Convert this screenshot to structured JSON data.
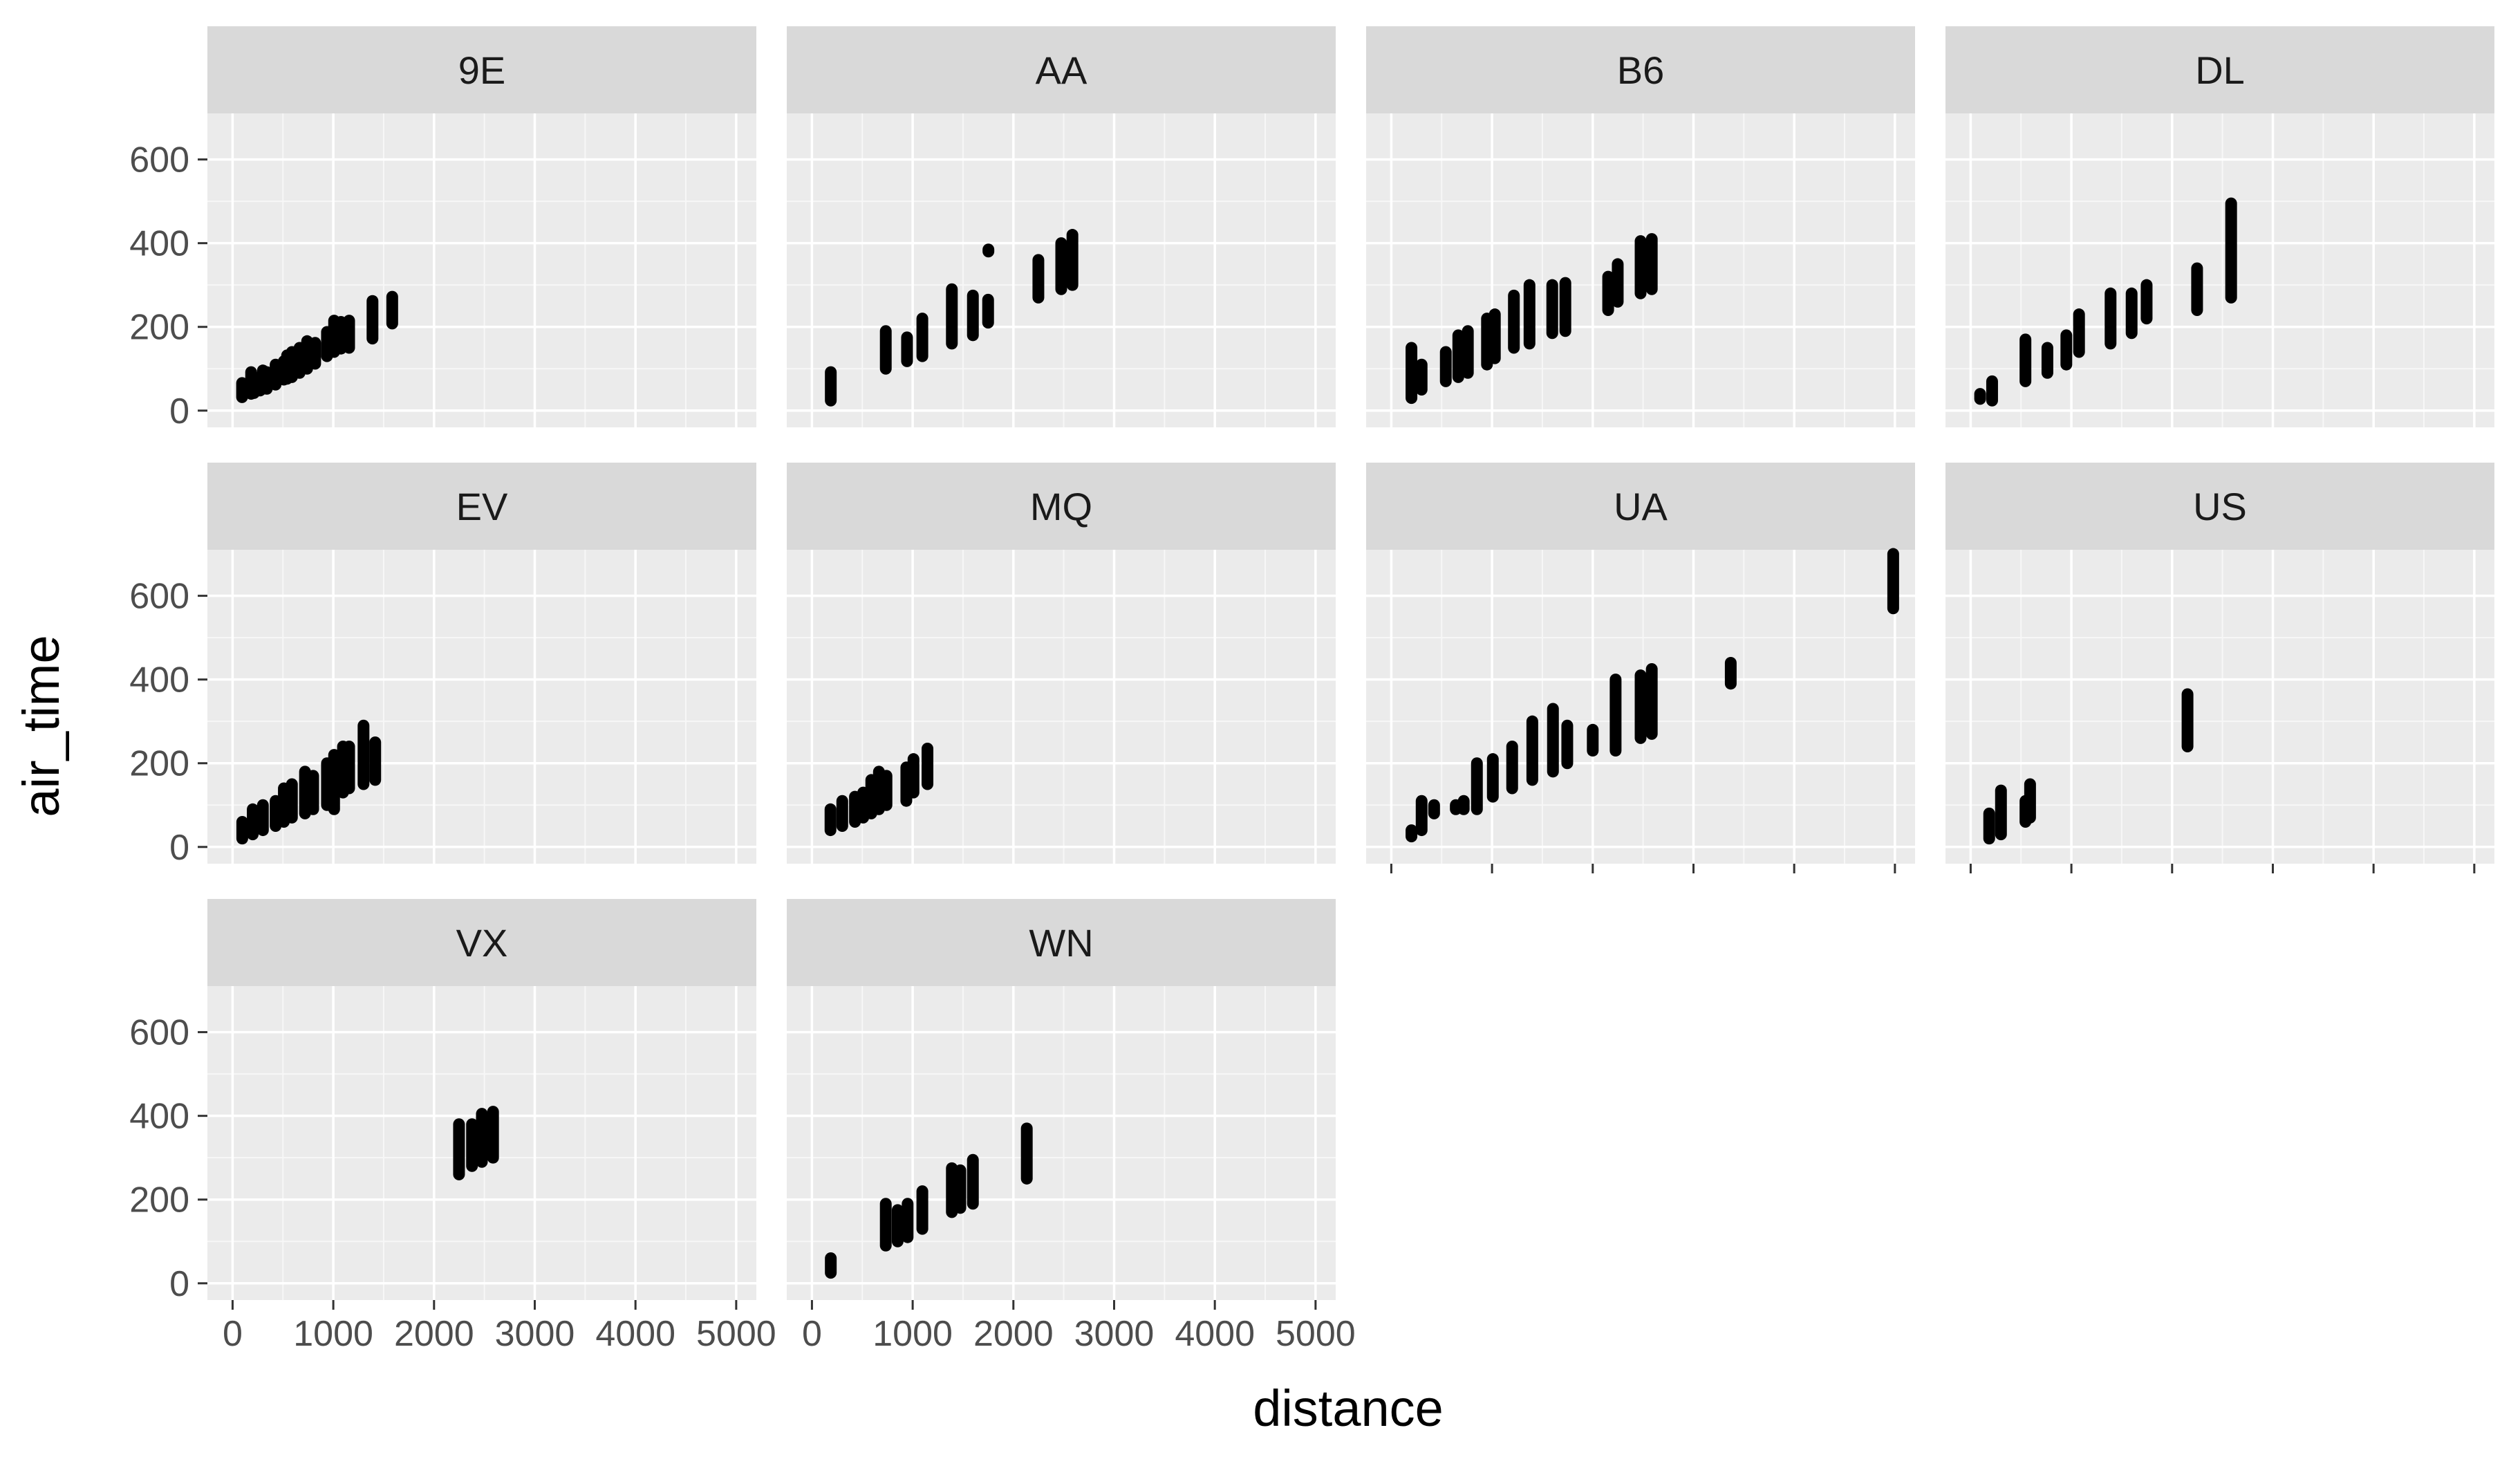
{
  "chart_data": {
    "type": "scatter",
    "facet_by": "carrier",
    "xlabel": "distance",
    "ylabel": "air_time",
    "xlim": [
      -250,
      5200
    ],
    "ylim": [
      -40,
      710
    ],
    "x_ticks": [
      0,
      1000,
      2000,
      3000,
      4000,
      5000
    ],
    "x_tick_labels": [
      "0",
      "1000",
      "2000",
      "3000",
      "4000",
      "5000"
    ],
    "y_ticks": [
      0,
      200,
      400,
      600
    ],
    "y_tick_labels": [
      "0",
      "200",
      "400",
      "600"
    ],
    "grid": true,
    "point_color": "#000000",
    "panel_background": "#ebebeb",
    "strip_background": "#d9d9d9",
    "facets": [
      {
        "label": "9E",
        "points": [
          {
            "x": 94,
            "y": 32,
            "y2": 66
          },
          {
            "x": 184,
            "y": 40,
            "y2": 92
          },
          {
            "x": 213,
            "y": 42,
            "y2": 72
          },
          {
            "x": 273,
            "y": 48,
            "y2": 80
          },
          {
            "x": 301,
            "y": 52,
            "y2": 96
          },
          {
            "x": 340,
            "y": 52,
            "y2": 92
          },
          {
            "x": 427,
            "y": 62,
            "y2": 110
          },
          {
            "x": 509,
            "y": 74,
            "y2": 118
          },
          {
            "x": 541,
            "y": 76,
            "y2": 132
          },
          {
            "x": 589,
            "y": 80,
            "y2": 140
          },
          {
            "x": 665,
            "y": 90,
            "y2": 150
          },
          {
            "x": 740,
            "y": 100,
            "y2": 166
          },
          {
            "x": 820,
            "y": 112,
            "y2": 162
          },
          {
            "x": 937,
            "y": 130,
            "y2": 188
          },
          {
            "x": 1008,
            "y": 140,
            "y2": 215
          },
          {
            "x": 1076,
            "y": 148,
            "y2": 212
          },
          {
            "x": 1157,
            "y": 150,
            "y2": 215
          },
          {
            "x": 1389,
            "y": 172,
            "y2": 262
          },
          {
            "x": 1585,
            "y": 208,
            "y2": 272
          }
        ]
      },
      {
        "label": "AA",
        "points": [
          {
            "x": 187,
            "y": 24,
            "y2": 92
          },
          {
            "x": 733,
            "y": 100,
            "y2": 190
          },
          {
            "x": 944,
            "y": 118,
            "y2": 175
          },
          {
            "x": 1096,
            "y": 130,
            "y2": 220
          },
          {
            "x": 1389,
            "y": 160,
            "y2": 290
          },
          {
            "x": 1598,
            "y": 180,
            "y2": 275
          },
          {
            "x": 1749,
            "y": 210,
            "y2": 265
          },
          {
            "x": 1752,
            "y": 380,
            "y2": 385
          },
          {
            "x": 2248,
            "y": 270,
            "y2": 360
          },
          {
            "x": 2475,
            "y": 290,
            "y2": 400
          },
          {
            "x": 2586,
            "y": 300,
            "y2": 420
          }
        ]
      },
      {
        "label": "B6",
        "points": [
          {
            "x": 200,
            "y": 30,
            "y2": 150
          },
          {
            "x": 301,
            "y": 50,
            "y2": 110
          },
          {
            "x": 541,
            "y": 70,
            "y2": 140
          },
          {
            "x": 665,
            "y": 80,
            "y2": 180
          },
          {
            "x": 760,
            "y": 90,
            "y2": 190
          },
          {
            "x": 950,
            "y": 110,
            "y2": 220
          },
          {
            "x": 1028,
            "y": 125,
            "y2": 230
          },
          {
            "x": 1217,
            "y": 150,
            "y2": 275
          },
          {
            "x": 1372,
            "y": 160,
            "y2": 300
          },
          {
            "x": 1598,
            "y": 185,
            "y2": 300
          },
          {
            "x": 1728,
            "y": 190,
            "y2": 305
          },
          {
            "x": 2153,
            "y": 240,
            "y2": 320
          },
          {
            "x": 2248,
            "y": 260,
            "y2": 350
          },
          {
            "x": 2475,
            "y": 280,
            "y2": 405
          },
          {
            "x": 2586,
            "y": 290,
            "y2": 410
          }
        ]
      },
      {
        "label": "DL",
        "points": [
          {
            "x": 94,
            "y": 28,
            "y2": 40
          },
          {
            "x": 213,
            "y": 24,
            "y2": 70
          },
          {
            "x": 544,
            "y": 70,
            "y2": 170
          },
          {
            "x": 762,
            "y": 90,
            "y2": 150
          },
          {
            "x": 950,
            "y": 110,
            "y2": 180
          },
          {
            "x": 1076,
            "y": 140,
            "y2": 230
          },
          {
            "x": 1389,
            "y": 160,
            "y2": 280
          },
          {
            "x": 1598,
            "y": 185,
            "y2": 280
          },
          {
            "x": 1747,
            "y": 220,
            "y2": 300
          },
          {
            "x": 2248,
            "y": 240,
            "y2": 340
          },
          {
            "x": 2586,
            "y": 270,
            "y2": 495
          }
        ]
      },
      {
        "label": "EV",
        "points": [
          {
            "x": 96,
            "y": 20,
            "y2": 60
          },
          {
            "x": 200,
            "y": 30,
            "y2": 90
          },
          {
            "x": 301,
            "y": 40,
            "y2": 100
          },
          {
            "x": 427,
            "y": 50,
            "y2": 110
          },
          {
            "x": 509,
            "y": 60,
            "y2": 140
          },
          {
            "x": 589,
            "y": 70,
            "y2": 150
          },
          {
            "x": 719,
            "y": 80,
            "y2": 180
          },
          {
            "x": 800,
            "y": 90,
            "y2": 170
          },
          {
            "x": 937,
            "y": 100,
            "y2": 200
          },
          {
            "x": 1008,
            "y": 90,
            "y2": 220
          },
          {
            "x": 1096,
            "y": 130,
            "y2": 240
          },
          {
            "x": 1157,
            "y": 140,
            "y2": 240
          },
          {
            "x": 1300,
            "y": 150,
            "y2": 290
          },
          {
            "x": 1416,
            "y": 160,
            "y2": 250
          }
        ]
      },
      {
        "label": "MQ",
        "points": [
          {
            "x": 184,
            "y": 40,
            "y2": 90
          },
          {
            "x": 301,
            "y": 50,
            "y2": 110
          },
          {
            "x": 427,
            "y": 60,
            "y2": 120
          },
          {
            "x": 509,
            "y": 70,
            "y2": 130
          },
          {
            "x": 589,
            "y": 80,
            "y2": 160
          },
          {
            "x": 665,
            "y": 90,
            "y2": 180
          },
          {
            "x": 740,
            "y": 100,
            "y2": 170
          },
          {
            "x": 937,
            "y": 110,
            "y2": 190
          },
          {
            "x": 1008,
            "y": 130,
            "y2": 210
          },
          {
            "x": 1147,
            "y": 150,
            "y2": 235
          }
        ]
      },
      {
        "label": "UA",
        "points": [
          {
            "x": 200,
            "y": 25,
            "y2": 40
          },
          {
            "x": 301,
            "y": 40,
            "y2": 110
          },
          {
            "x": 425,
            "y": 80,
            "y2": 100
          },
          {
            "x": 640,
            "y": 90,
            "y2": 100
          },
          {
            "x": 719,
            "y": 90,
            "y2": 110
          },
          {
            "x": 850,
            "y": 90,
            "y2": 200
          },
          {
            "x": 1008,
            "y": 120,
            "y2": 210
          },
          {
            "x": 1200,
            "y": 140,
            "y2": 240
          },
          {
            "x": 1400,
            "y": 160,
            "y2": 300
          },
          {
            "x": 1605,
            "y": 180,
            "y2": 330
          },
          {
            "x": 1747,
            "y": 200,
            "y2": 290
          },
          {
            "x": 2000,
            "y": 230,
            "y2": 280
          },
          {
            "x": 2227,
            "y": 230,
            "y2": 400
          },
          {
            "x": 2475,
            "y": 260,
            "y2": 410
          },
          {
            "x": 2586,
            "y": 270,
            "y2": 425
          },
          {
            "x": 3370,
            "y": 390,
            "y2": 440
          },
          {
            "x": 4983,
            "y": 570,
            "y2": 700
          }
        ]
      },
      {
        "label": "US",
        "points": [
          {
            "x": 184,
            "y": 20,
            "y2": 80
          },
          {
            "x": 301,
            "y": 30,
            "y2": 135
          },
          {
            "x": 544,
            "y": 60,
            "y2": 110
          },
          {
            "x": 590,
            "y": 70,
            "y2": 150
          },
          {
            "x": 2153,
            "y": 240,
            "y2": 365
          }
        ]
      },
      {
        "label": "VX",
        "points": [
          {
            "x": 2248,
            "y": 260,
            "y2": 380
          },
          {
            "x": 2377,
            "y": 280,
            "y2": 380
          },
          {
            "x": 2475,
            "y": 290,
            "y2": 405
          },
          {
            "x": 2586,
            "y": 300,
            "y2": 410
          }
        ]
      },
      {
        "label": "WN",
        "points": [
          {
            "x": 187,
            "y": 25,
            "y2": 60
          },
          {
            "x": 733,
            "y": 90,
            "y2": 190
          },
          {
            "x": 851,
            "y": 100,
            "y2": 175
          },
          {
            "x": 950,
            "y": 110,
            "y2": 190
          },
          {
            "x": 1096,
            "y": 130,
            "y2": 220
          },
          {
            "x": 1389,
            "y": 170,
            "y2": 275
          },
          {
            "x": 1473,
            "y": 180,
            "y2": 270
          },
          {
            "x": 1598,
            "y": 190,
            "y2": 295
          },
          {
            "x": 2133,
            "y": 250,
            "y2": 370
          }
        ]
      }
    ]
  }
}
